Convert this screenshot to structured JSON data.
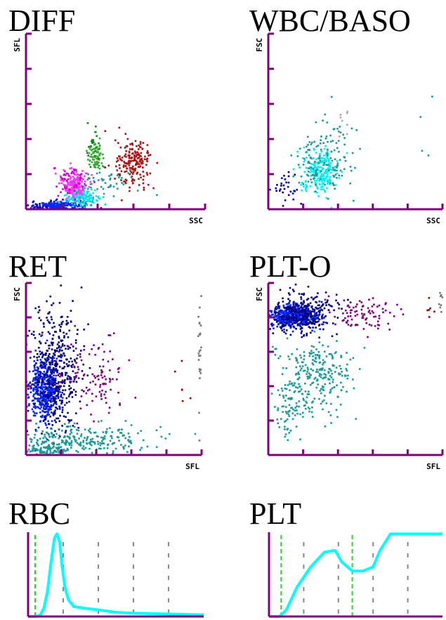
{
  "chart_data": [
    {
      "type": "scatter",
      "title": "DIFF",
      "xlabel": "SSC",
      "ylabel": "SFL",
      "xlim": [
        0,
        5
      ],
      "ylim": [
        0,
        5
      ],
      "clusters": [
        {
          "color": "#0000cc",
          "cx": 0.8,
          "cy": 0.1,
          "sx": 0.5,
          "sy": 0.08,
          "n": 160
        },
        {
          "color": "#0a2bff",
          "cx": 1.0,
          "cy": 0.1,
          "sx": 0.3,
          "sy": 0.05,
          "n": 120
        },
        {
          "color": "#00e5e5",
          "cx": 1.55,
          "cy": 0.35,
          "sx": 0.22,
          "sy": 0.12,
          "n": 160
        },
        {
          "color": "#ff33ff",
          "cx": 1.35,
          "cy": 0.75,
          "sx": 0.18,
          "sy": 0.2,
          "n": 170
        },
        {
          "color": "#cc00cc",
          "cx": 1.25,
          "cy": 0.8,
          "sx": 0.25,
          "sy": 0.25,
          "n": 50
        },
        {
          "color": "#33aa33",
          "cx": 1.95,
          "cy": 1.5,
          "sx": 0.12,
          "sy": 0.22,
          "n": 70
        },
        {
          "color": "#118811",
          "cx": 1.9,
          "cy": 1.8,
          "sx": 0.1,
          "sy": 0.3,
          "n": 20
        },
        {
          "color": "#aa1111",
          "cx": 3.0,
          "cy": 1.3,
          "sx": 0.25,
          "sy": 0.35,
          "n": 190
        },
        {
          "color": "#229999",
          "cx": 2.3,
          "cy": 0.75,
          "sx": 0.4,
          "sy": 0.2,
          "n": 45
        }
      ]
    },
    {
      "type": "scatter",
      "title": "WBC/BASO",
      "xlabel": "SSC",
      "ylabel": "FSC",
      "xlim": [
        0,
        5
      ],
      "ylim": [
        0,
        5
      ],
      "clusters": [
        {
          "color": "#00f0f0",
          "cx": 1.5,
          "cy": 1.1,
          "sx": 0.25,
          "sy": 0.3,
          "n": 220
        },
        {
          "color": "#1a9999",
          "cx": 1.55,
          "cy": 1.4,
          "sx": 0.45,
          "sy": 0.55,
          "n": 140
        },
        {
          "color": "#0000aa",
          "cx": 0.55,
          "cy": 0.55,
          "sx": 0.2,
          "sy": 0.25,
          "n": 30
        },
        {
          "color": "#aaaaaa",
          "cx": 2.1,
          "cy": 2.5,
          "sx": 0.12,
          "sy": 0.2,
          "n": 8
        },
        {
          "color": "#1a9999",
          "cx": 4.3,
          "cy": 2.2,
          "sx": 0.3,
          "sy": 0.4,
          "n": 4
        }
      ]
    },
    {
      "type": "scatter",
      "title": "RET",
      "xlabel": "SFL",
      "ylabel": "FSC",
      "xlim": [
        0,
        5
      ],
      "ylim": [
        0,
        5
      ],
      "clusters": [
        {
          "color": "#0022ff",
          "cx": 0.55,
          "cy": 1.9,
          "sx": 0.22,
          "sy": 0.45,
          "n": 420
        },
        {
          "color": "#000080",
          "cx": 0.8,
          "cy": 2.4,
          "sx": 0.35,
          "sy": 0.9,
          "n": 480
        },
        {
          "color": "#800080",
          "cx": 1.9,
          "cy": 2.2,
          "sx": 0.55,
          "sy": 0.6,
          "n": 110
        },
        {
          "color": "#1a9999",
          "cx": 1.5,
          "cy": 0.45,
          "sx": 1.0,
          "sy": 0.22,
          "n": 260
        },
        {
          "color": "#1a9999",
          "cx": 0.6,
          "cy": 0.15,
          "sx": 0.35,
          "sy": 0.1,
          "n": 100
        },
        {
          "color": "#990000",
          "cx": 4.4,
          "cy": 2.4,
          "sx": 0.3,
          "sy": 0.7,
          "n": 6
        },
        {
          "color": "#777777",
          "cx": 4.95,
          "cy": 3.0,
          "sx": 0.03,
          "sy": 1.0,
          "n": 25
        }
      ]
    },
    {
      "type": "scatter",
      "title": "PLT-O",
      "xlabel": "SFL",
      "ylabel": "FSC",
      "xlim": [
        0,
        5
      ],
      "ylim": [
        0,
        5
      ],
      "clusters": [
        {
          "color": "#0022ff",
          "cx": 0.75,
          "cy": 4.05,
          "sx": 0.35,
          "sy": 0.18,
          "n": 400
        },
        {
          "color": "#000080",
          "cx": 0.9,
          "cy": 4.1,
          "sx": 0.55,
          "sy": 0.3,
          "n": 320
        },
        {
          "color": "#800080",
          "cx": 2.6,
          "cy": 4.1,
          "sx": 0.55,
          "sy": 0.25,
          "n": 90
        },
        {
          "color": "#1a9999",
          "cx": 1.4,
          "cy": 2.3,
          "sx": 0.55,
          "sy": 0.6,
          "n": 260
        },
        {
          "color": "#1a9999",
          "cx": 0.6,
          "cy": 1.4,
          "sx": 0.2,
          "sy": 0.4,
          "n": 70
        },
        {
          "color": "#990000",
          "cx": 4.6,
          "cy": 4.3,
          "sx": 0.15,
          "sy": 0.15,
          "n": 6
        },
        {
          "color": "#777777",
          "cx": 4.95,
          "cy": 4.5,
          "sx": 0.03,
          "sy": 0.2,
          "n": 10
        }
      ]
    },
    {
      "type": "line",
      "title": "RBC",
      "xlim": [
        0,
        5
      ],
      "ylim": [
        0,
        1
      ],
      "guide_lines": [
        0.2
      ],
      "x": [
        0.0,
        0.25,
        0.35,
        0.45,
        0.55,
        0.65,
        0.75,
        0.82,
        0.9,
        0.97,
        1.05,
        1.15,
        1.3,
        1.6,
        2.0,
        2.5,
        3.0,
        4.0,
        5.0
      ],
      "y": [
        0.0,
        0.0,
        0.02,
        0.1,
        0.3,
        0.65,
        0.95,
        1.0,
        0.9,
        0.6,
        0.35,
        0.2,
        0.12,
        0.1,
        0.08,
        0.05,
        0.04,
        0.03,
        0.02
      ],
      "color": "#00ffff"
    },
    {
      "type": "line",
      "title": "PLT",
      "xlim": [
        0,
        5
      ],
      "ylim": [
        0,
        1
      ],
      "guide_lines": [
        0.35,
        2.4
      ],
      "x": [
        0.0,
        0.3,
        0.5,
        0.8,
        1.2,
        1.6,
        1.9,
        2.1,
        2.4,
        2.7,
        3.0,
        3.2,
        3.5,
        3.8,
        4.2,
        5.0
      ],
      "y": [
        0.0,
        0.0,
        0.08,
        0.35,
        0.6,
        0.78,
        0.8,
        0.66,
        0.55,
        0.55,
        0.6,
        0.8,
        1.0,
        1.0,
        1.0,
        1.0
      ],
      "color": "#00ffff"
    }
  ],
  "style": {
    "axis_color": "#800080",
    "guide_color": "#22dd22",
    "grid_color": "#888888"
  }
}
